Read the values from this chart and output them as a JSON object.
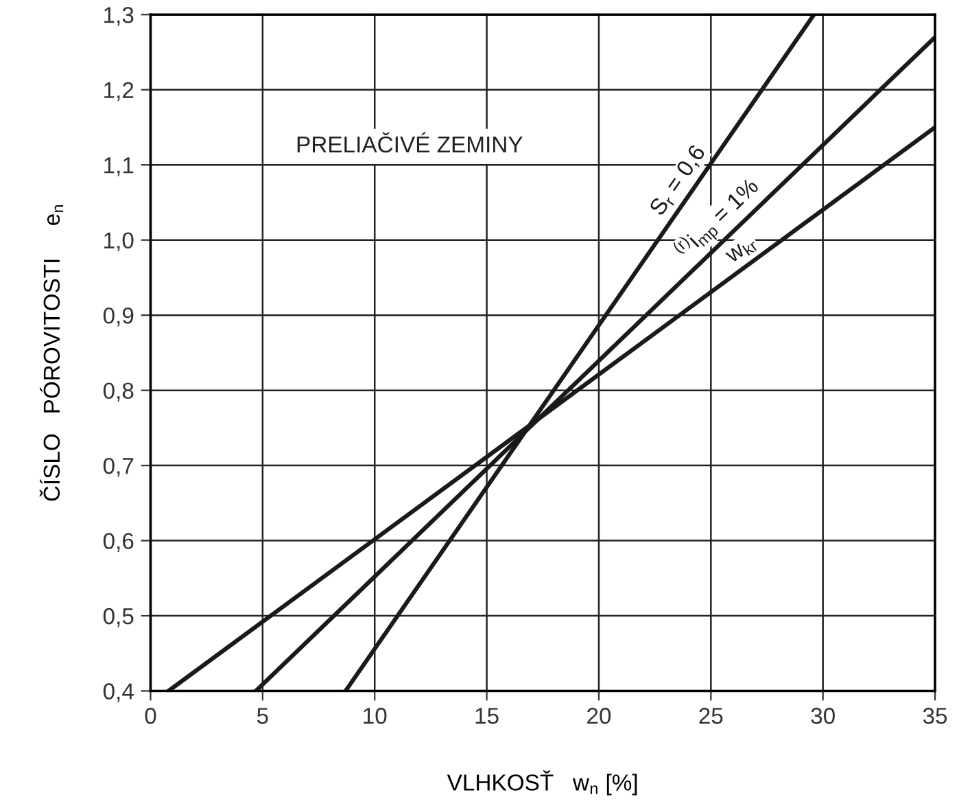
{
  "chart_data": {
    "type": "line",
    "xlabel": "VLHKOSŤ   w$_{n}$ [%]",
    "ylabel": "ČÍSLO   PÓROVITOSTI     e$_{n}$",
    "annotations": [
      "PRELIAČIVÉ ZEMINY"
    ],
    "series": [
      {
        "name": "S$_{r}$ = 0,6",
        "color": "#1a1a1a",
        "x": [
          8.7,
          29.6
        ],
        "values": [
          0.4,
          1.3
        ]
      },
      {
        "name": "$^{(r)}$i$_{mp}$ = 1%",
        "color": "#1a1a1a",
        "x": [
          4.7,
          35
        ],
        "values": [
          0.4,
          1.27
        ]
      },
      {
        "name": "w$_{kr}$",
        "color": "#1a1a1a",
        "x": [
          0.8,
          35
        ],
        "values": [
          0.4,
          1.15
        ]
      }
    ],
    "xlim": [
      0,
      35
    ],
    "ylim": [
      0.4,
      1.3
    ],
    "xticks": [
      0,
      5,
      10,
      15,
      20,
      25,
      30,
      35
    ],
    "yticks": [
      {
        "value": 0.4,
        "label": "0,4"
      },
      {
        "value": 0.5,
        "label": "0,5"
      },
      {
        "value": 0.6,
        "label": "0,6"
      },
      {
        "value": 0.7,
        "label": "0,7"
      },
      {
        "value": 0.8,
        "label": "0,8"
      },
      {
        "value": 0.9,
        "label": "0,9"
      },
      {
        "value": 1.0,
        "label": "1,0"
      },
      {
        "value": 1.1,
        "label": "1,1"
      },
      {
        "value": 1.2,
        "label": "1,2"
      },
      {
        "value": 1.3,
        "label": "1,3"
      }
    ],
    "grid": true,
    "marker": "none",
    "line_style": "solid"
  }
}
